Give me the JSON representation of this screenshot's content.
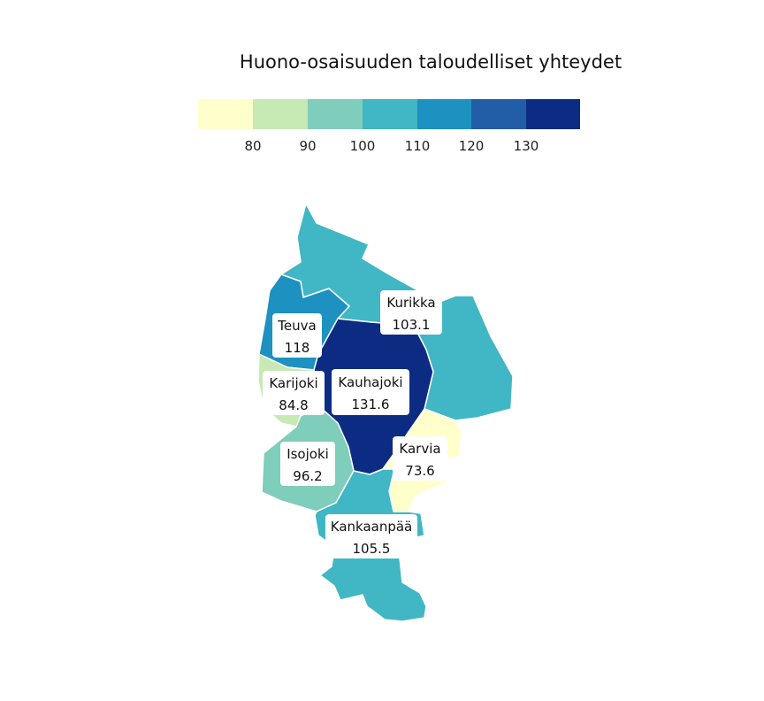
{
  "title": "Huono-osaisuuden taloudelliset yhteydet",
  "legend": {
    "colors": [
      "#ffffcc",
      "#c7e9b4",
      "#7fcdbb",
      "#41b6c4",
      "#1d91c0",
      "#225ea8",
      "#0c2c84"
    ],
    "ticks": [
      "80",
      "90",
      "100",
      "110",
      "120",
      "130"
    ]
  },
  "regions": [
    {
      "id": "kurikka",
      "name": "Kurikka",
      "value": "103.1",
      "color": "#41b6c4"
    },
    {
      "id": "teuva",
      "name": "Teuva",
      "value": "118",
      "color": "#1d91c0"
    },
    {
      "id": "kauhajoki",
      "name": "Kauhajoki",
      "value": "131.6",
      "color": "#0c2c84"
    },
    {
      "id": "karijoki",
      "name": "Karijoki",
      "value": "84.8",
      "color": "#c7e9b4"
    },
    {
      "id": "isojoki",
      "name": "Isojoki",
      "value": "96.2",
      "color": "#7fcdbb"
    },
    {
      "id": "karvia",
      "name": "Karvia",
      "value": "73.6",
      "color": "#ffffcc"
    },
    {
      "id": "kankaanpaa",
      "name": "Kankaanpää",
      "value": "105.5",
      "color": "#41b6c4"
    }
  ]
}
